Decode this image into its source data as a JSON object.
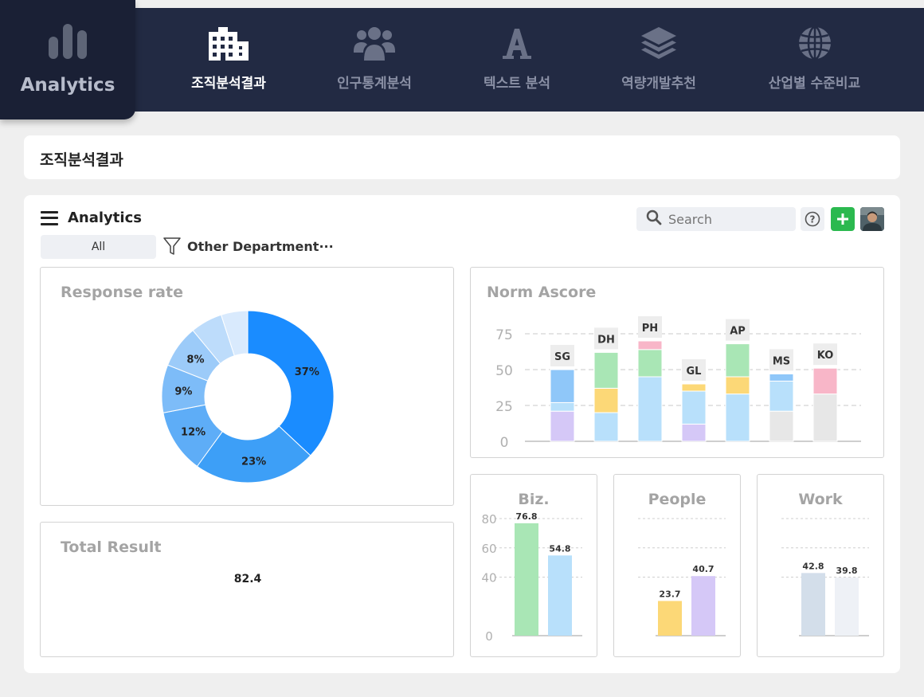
{
  "app": {
    "name": "Analytics"
  },
  "nav": [
    {
      "label": "조직분석결과",
      "icon": "building-icon",
      "active": true
    },
    {
      "label": "인구통계분석",
      "icon": "users-icon",
      "active": false
    },
    {
      "label": "텍스트 분석",
      "icon": "font-icon",
      "active": false
    },
    {
      "label": "역량개발추천",
      "icon": "layers-icon",
      "active": false
    },
    {
      "label": "산업별 수준비교",
      "icon": "globe-icon",
      "active": false
    }
  ],
  "page": {
    "title": "조직분석결과"
  },
  "panel": {
    "title": "Analytics",
    "search_placeholder": "Search",
    "filter_all": "All",
    "filter_department": "Other Department···"
  },
  "colors": {
    "nav_bg": "#222a43",
    "accent_green": "#2bb94f",
    "donut": [
      "#1a8cff",
      "#3d9ff7",
      "#5eadf7",
      "#7dbcf8",
      "#9ccbf9",
      "#bddcfb",
      "#d9eafd"
    ]
  },
  "response_rate": {
    "title": "Response rate",
    "chart_data": {
      "type": "pie",
      "values": [
        37,
        23,
        12,
        9,
        8,
        6,
        5
      ],
      "labels": [
        "37%",
        "23%",
        "12%",
        "9%",
        "8%",
        "",
        ""
      ]
    }
  },
  "total_result": {
    "title": "Total Result",
    "chart_data": {
      "type": "gauge",
      "value": 82.4,
      "label": "82.4",
      "secondary_fraction": 0.17
    }
  },
  "norm_ascore": {
    "title": "Norm Ascore",
    "chart_data": {
      "type": "bar",
      "stacked": true,
      "categories": [
        "SG",
        "DH",
        "PH",
        "GL",
        "AP",
        "MS",
        "KO"
      ],
      "ylim": [
        0,
        75
      ],
      "yticks": [
        "0",
        "25",
        "50",
        "75"
      ],
      "stacks": [
        [
          {
            "v": 21,
            "c": "#d5c8f7"
          },
          {
            "v": 6,
            "c": "#b8e0fb"
          },
          {
            "v": 23,
            "c": "#8fc7f9"
          }
        ],
        [
          {
            "v": 20,
            "c": "#b8e0fb"
          },
          {
            "v": 17,
            "c": "#fcd877"
          },
          {
            "v": 25,
            "c": "#a9e6b5"
          }
        ],
        [
          {
            "v": 45,
            "c": "#b8e0fb"
          },
          {
            "v": 19,
            "c": "#a9e6b5"
          },
          {
            "v": 6,
            "c": "#f8b6c8"
          }
        ],
        [
          {
            "v": 12,
            "c": "#d5c8f7"
          },
          {
            "v": 23,
            "c": "#b8e0fb"
          },
          {
            "v": 5,
            "c": "#fcd877"
          }
        ],
        [
          {
            "v": 33,
            "c": "#b8e0fb"
          },
          {
            "v": 12,
            "c": "#fcd877"
          },
          {
            "v": 23,
            "c": "#a9e6b5"
          }
        ],
        [
          {
            "v": 21,
            "c": "#e7e7e7"
          },
          {
            "v": 21,
            "c": "#b8e0fb"
          },
          {
            "v": 5,
            "c": "#8fc7f9"
          }
        ],
        [
          {
            "v": 33,
            "c": "#e7e7e7"
          },
          {
            "v": 18,
            "c": "#f8b6c8"
          }
        ]
      ]
    }
  },
  "mini_charts": [
    {
      "title": "Biz.",
      "show_y": true,
      "chart_data": {
        "type": "bar",
        "ylim": [
          0,
          80
        ],
        "yticks": [
          "0",
          "40",
          "60",
          "80"
        ],
        "ytickvals": [
          0,
          40,
          60,
          80
        ],
        "values": [
          76.8,
          54.8
        ],
        "labels": [
          "76.8",
          "54.8"
        ],
        "colors": [
          "#a9e6b5",
          "#b8e0fb"
        ]
      }
    },
    {
      "title": "People",
      "show_y": false,
      "chart_data": {
        "type": "bar",
        "ylim": [
          0,
          80
        ],
        "yticks": [],
        "ytickvals": [
          0,
          40,
          60,
          80
        ],
        "values": [
          23.7,
          40.7
        ],
        "labels": [
          "23.7",
          "40.7"
        ],
        "colors": [
          "#fcd877",
          "#d5c8f7"
        ]
      }
    },
    {
      "title": "Work",
      "show_y": false,
      "chart_data": {
        "type": "bar",
        "ylim": [
          0,
          80
        ],
        "yticks": [],
        "ytickvals": [
          0,
          40,
          60,
          80
        ],
        "values": [
          42.8,
          39.8
        ],
        "labels": [
          "42.8",
          "39.8"
        ],
        "colors": [
          "#d3deea",
          "#eef1f6"
        ]
      }
    }
  ]
}
